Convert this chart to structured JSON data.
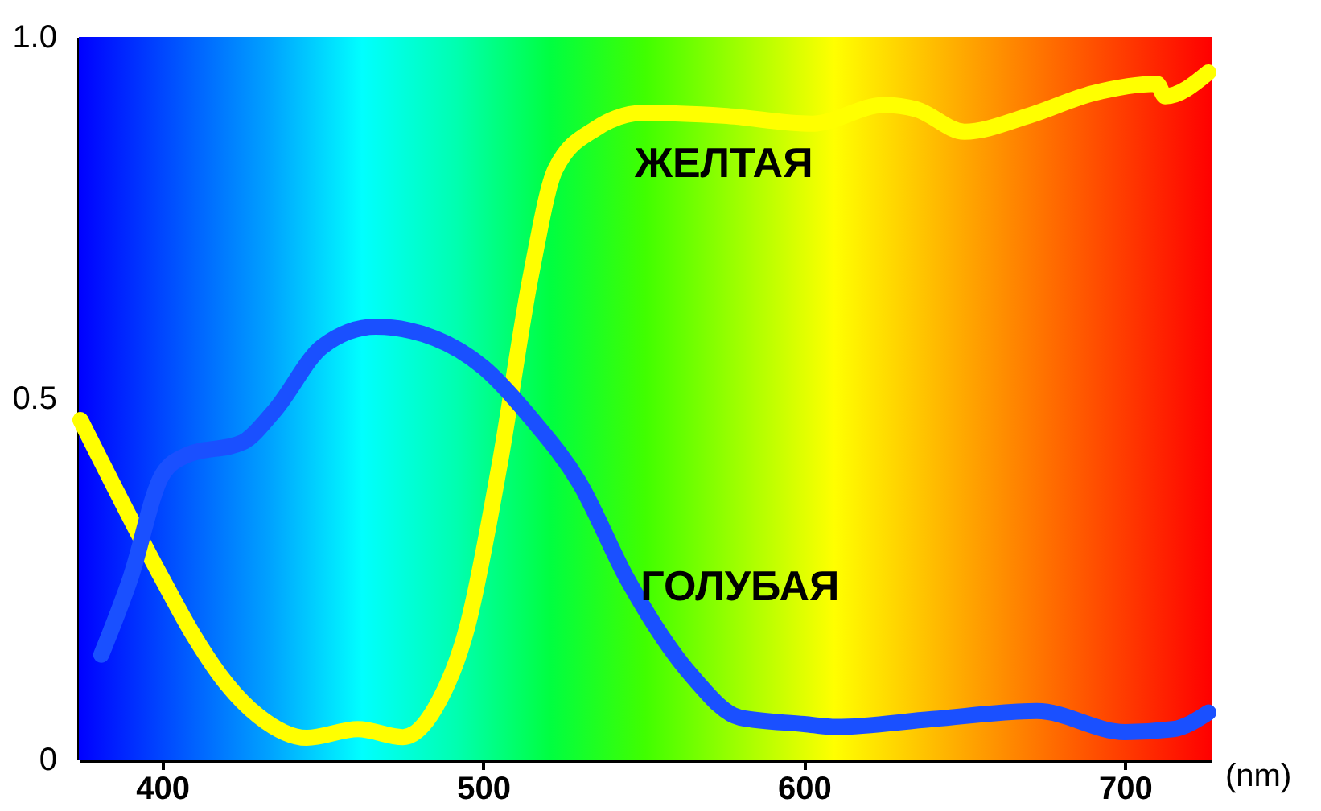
{
  "chart_data": {
    "type": "line",
    "xlabel": "(nm)",
    "xlim": [
      374,
      727
    ],
    "xticks": [
      400,
      500,
      600,
      700
    ],
    "ylim": [
      0,
      1.0
    ],
    "yticks": [
      0,
      {
        "value": 0.5,
        "label": "0.5"
      },
      {
        "value": 1.0,
        "label": "1.0"
      }
    ],
    "grid": false,
    "line_style": "solid",
    "series": [
      {
        "name": "ЖЕЛТАЯ",
        "color": "#ffff00",
        "x": [
          374.5,
          400,
          410,
          420,
          430,
          445,
          461,
          475,
          485,
          495,
          505,
          515,
          522.5,
          535,
          550,
          575,
          602.5,
          625,
          635,
          650,
          670,
          690,
          710,
          712.5,
          726
        ],
        "values": [
          0.47,
          0.25,
          0.17,
          0.105,
          0.06,
          0.03,
          0.042,
          0.031,
          0.071,
          0.183,
          0.405,
          0.673,
          0.817,
          0.873,
          0.895,
          0.891,
          0.88,
          0.906,
          0.9,
          0.869,
          0.891,
          0.922,
          0.935,
          0.918,
          0.951
        ]
      },
      {
        "name": "ГОЛУБАЯ",
        "color": "#1a50ff",
        "x": [
          381,
          390,
          400,
          407.5,
          425,
          435,
          450,
          466.5,
          485,
          500,
          515,
          530,
          545,
          565,
          580,
          600,
          610,
          640,
          672.5,
          700,
          715,
          726
        ],
        "values": [
          0.145,
          0.25,
          0.394,
          0.421,
          0.439,
          0.483,
          0.572,
          0.599,
          0.583,
          0.543,
          0.472,
          0.383,
          0.249,
          0.116,
          0.058,
          0.049,
          0.045,
          0.056,
          0.067,
          0.038,
          0.042,
          0.065
        ]
      }
    ]
  }
}
